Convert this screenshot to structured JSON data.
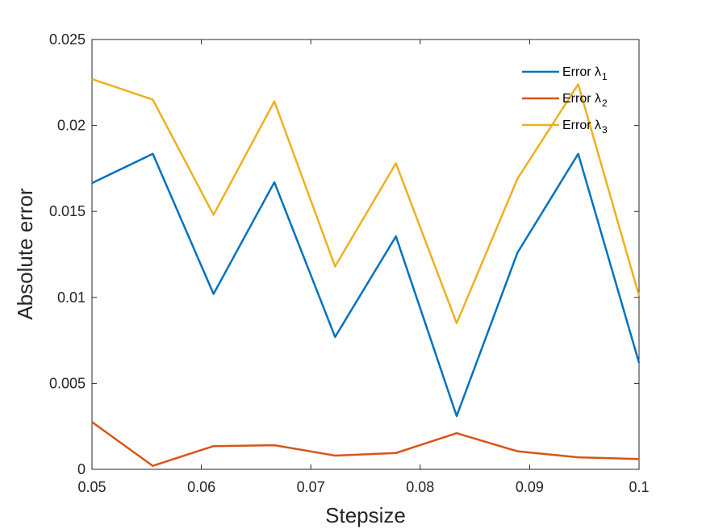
{
  "chart_data": {
    "type": "line",
    "xlabel": "Stepsize",
    "ylabel": "Absolute error",
    "xlim": [
      0.05,
      0.1
    ],
    "ylim": [
      0,
      0.025
    ],
    "xticks": [
      "0.05",
      "0.06",
      "0.07",
      "0.08",
      "0.09",
      "0.1"
    ],
    "yticks": [
      "0",
      "0.005",
      "0.01",
      "0.015",
      "0.02",
      "0.025"
    ],
    "x": [
      0.05,
      0.05556,
      0.06111,
      0.06667,
      0.07222,
      0.07778,
      0.08333,
      0.08889,
      0.09444,
      0.1
    ],
    "grid": false,
    "legend_position": "top-right",
    "series": [
      {
        "name": "Error λ",
        "subscript": "1",
        "color": "#0072BD",
        "values": [
          0.01665,
          0.01835,
          0.0102,
          0.0167,
          0.0077,
          0.01355,
          0.0031,
          0.0126,
          0.01835,
          0.0062
        ]
      },
      {
        "name": "Error λ",
        "subscript": "2",
        "color": "#D95319",
        "values": [
          0.00275,
          0.0002,
          0.00135,
          0.0014,
          0.0008,
          0.00095,
          0.0021,
          0.00105,
          0.0007,
          0.0006
        ]
      },
      {
        "name": "Error λ",
        "subscript": "3",
        "color": "#EDB120",
        "values": [
          0.0227,
          0.0215,
          0.0148,
          0.0214,
          0.0118,
          0.0178,
          0.0085,
          0.0169,
          0.0224,
          0.0101
        ]
      }
    ]
  }
}
